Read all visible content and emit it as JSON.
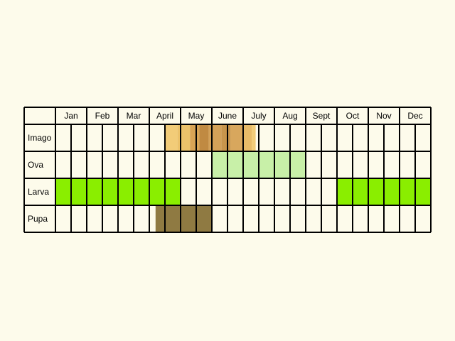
{
  "chart_data": {
    "type": "table",
    "months": [
      "Jan",
      "Feb",
      "Mar",
      "April",
      "May",
      "June",
      "July",
      "Aug",
      "Sept",
      "Oct",
      "Nov",
      "Dec"
    ],
    "periods_per_month": 2,
    "stages": [
      {
        "name": "Imago",
        "color": "#f2cc78",
        "shading": [
          {
            "from_half": 7.0,
            "to_half": 7.8,
            "color": "#f2cc78"
          },
          {
            "from_half": 7.8,
            "to_half": 8.6,
            "color": "#ecc26a"
          },
          {
            "from_half": 8.6,
            "to_half": 9.2,
            "color": "#d9a455"
          },
          {
            "from_half": 9.2,
            "to_half": 9.8,
            "color": "#c08a42"
          },
          {
            "from_half": 9.8,
            "to_half": 10.6,
            "color": "#d4a158"
          },
          {
            "from_half": 10.6,
            "to_half": 11.2,
            "color": "#c8954c"
          },
          {
            "from_half": 11.2,
            "to_half": 12.0,
            "color": "#d8a75d"
          },
          {
            "from_half": 12.0,
            "to_half": 12.55,
            "color": "#e8bb68"
          },
          {
            "from_half": 12.55,
            "to_half": 12.8,
            "color": "#f2cc78"
          }
        ]
      },
      {
        "name": "Ova",
        "color": "#c8f0a8",
        "ranges": [
          [
            10.0,
            16.0
          ]
        ]
      },
      {
        "name": "Larva",
        "color": "#8aee00",
        "ranges": [
          [
            0.0,
            8.0
          ],
          [
            18.0,
            24.0
          ]
        ]
      },
      {
        "name": "Pupa",
        "color": "#8f7a42",
        "ranges": [
          [
            6.4,
            10.0
          ]
        ]
      }
    ]
  }
}
